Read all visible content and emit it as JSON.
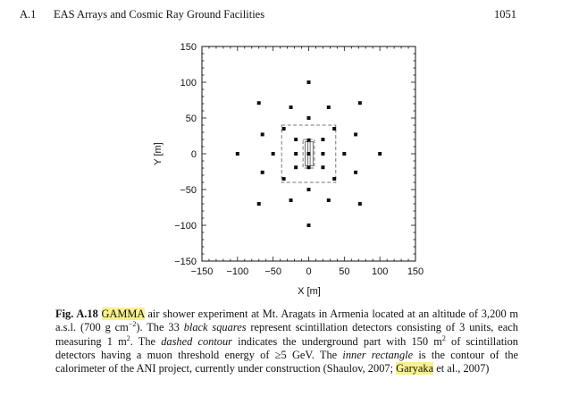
{
  "header": {
    "section": "A.1",
    "title": "EAS Arrays and Cosmic Ray Ground Facilities",
    "page_number": "1051"
  },
  "chart_data": {
    "type": "scatter",
    "xlabel": "X [m]",
    "ylabel": "Y [m]",
    "xlim": [
      -150,
      150
    ],
    "ylim": [
      -150,
      150
    ],
    "xticks": [
      "−150",
      "−100",
      "−50",
      "0",
      "50",
      "100",
      "150"
    ],
    "yticks": [
      "150",
      "100",
      "50",
      "0",
      "−50",
      "−100",
      "−150"
    ],
    "xtick_values": [
      -150,
      -100,
      -50,
      0,
      50,
      100,
      150
    ],
    "ytick_values": [
      150,
      100,
      50,
      0,
      -50,
      -100,
      -150
    ],
    "grid": false,
    "points": [
      {
        "x": 0,
        "y": 100
      },
      {
        "x": 0,
        "y": -100
      },
      {
        "x": 100,
        "y": 0
      },
      {
        "x": -100,
        "y": 0
      },
      {
        "x": -70,
        "y": 71
      },
      {
        "x": 72,
        "y": 71
      },
      {
        "x": -70,
        "y": -70
      },
      {
        "x": 72,
        "y": -70
      },
      {
        "x": -25,
        "y": 65
      },
      {
        "x": 28,
        "y": 65
      },
      {
        "x": -25,
        "y": -65
      },
      {
        "x": 28,
        "y": -65
      },
      {
        "x": -65,
        "y": 27
      },
      {
        "x": 66,
        "y": 27
      },
      {
        "x": -65,
        "y": -26
      },
      {
        "x": 66,
        "y": -26
      },
      {
        "x": 0,
        "y": 50
      },
      {
        "x": 0,
        "y": -50
      },
      {
        "x": -50,
        "y": 0
      },
      {
        "x": 50,
        "y": 0
      },
      {
        "x": -35,
        "y": 35
      },
      {
        "x": 36,
        "y": 35
      },
      {
        "x": -35,
        "y": -35
      },
      {
        "x": 36,
        "y": -35
      },
      {
        "x": -18,
        "y": 20
      },
      {
        "x": 20,
        "y": 20
      },
      {
        "x": -18,
        "y": -19
      },
      {
        "x": 20,
        "y": -19
      },
      {
        "x": -18,
        "y": 0
      },
      {
        "x": 20,
        "y": 0
      },
      {
        "x": 0,
        "y": 19
      },
      {
        "x": 0,
        "y": -19
      },
      {
        "x": 0,
        "y": 0
      }
    ],
    "dashed_outer_rectangle": {
      "x": [
        -38,
        38
      ],
      "y": [
        -40,
        40
      ]
    },
    "dashed_inner_rectangle": {
      "x": [
        -8,
        8
      ],
      "y": [
        -20,
        20
      ]
    },
    "small_solid_rectangles": [
      {
        "x": [
          -5,
          -1
        ],
        "y": [
          -17,
          17
        ]
      },
      {
        "x": [
          2,
          6
        ],
        "y": [
          -17,
          17
        ]
      }
    ]
  },
  "caption": {
    "label": "Fig. A.18",
    "highlight_gamma": "GAMMA",
    "t1": " air shower experiment at Mt. Aragats in Armenia located at an altitude of 3,200 m a.s.l. (700 g cm",
    "sup1": "−2",
    "t2": "). The 33 ",
    "em_black_squares": "black squares",
    "t3": " represent scintillation detectors consisting of 3 units, each measuring 1 m",
    "sup2": "2",
    "t4": ". The ",
    "em_dashed_contour": "dashed contour",
    "t5": " indicates the underground part with 150 m",
    "sup3": "2",
    "t6": " of scintillation detectors having a muon threshold energy of ≥5 GeV. The ",
    "em_inner_rectangle": "inner rectangle",
    "t7": " is the contour of the calorimeter of the ANI project, currently under construction (Shaulov, 2007; ",
    "highlight_garyaka": "Garyaka",
    "t8": " et al., 2007)"
  }
}
